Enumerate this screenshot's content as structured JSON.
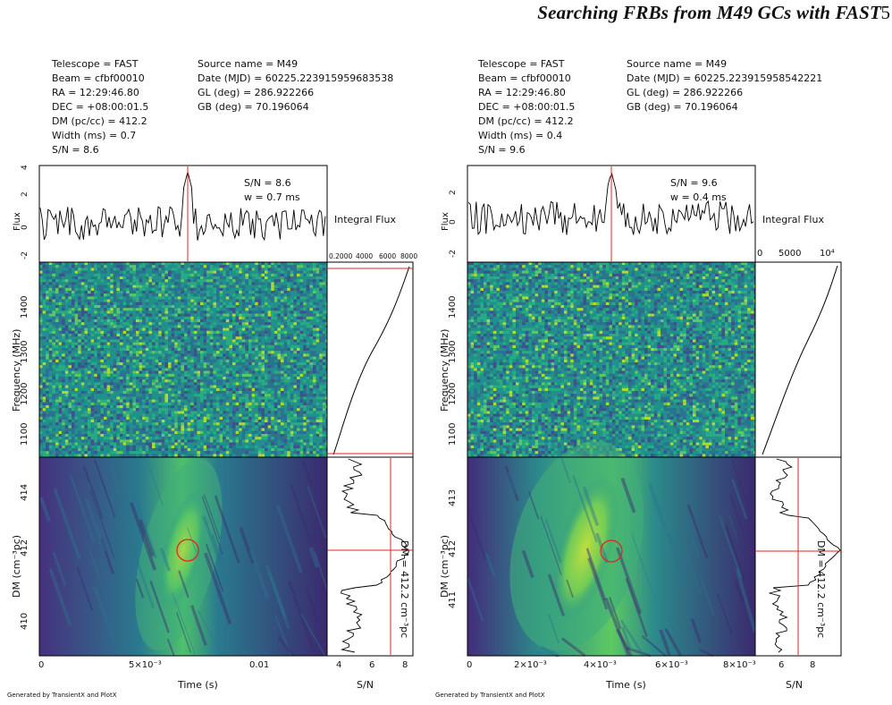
{
  "header": {
    "title": "Searching FRBs from M49 GCs with FAST",
    "page_number": "5"
  },
  "panels": [
    {
      "meta_left": [
        "Telescope = FAST",
        "Beam = cfbf00010",
        "RA = 12:29:46.80",
        "DEC = +08:00:01.5",
        "DM (pc/cc) = 412.2",
        "Width (ms) = 0.7",
        "S/N = 8.6"
      ],
      "meta_right": [
        "Source name = M49",
        "Date (MJD) = 60225.223915959683538",
        "GL (deg) = 286.922266",
        "GB (deg) = 70.196064"
      ],
      "flux_annot": [
        "S/N = 8.6",
        "w = 0.7 ms"
      ],
      "integral_flux_label": "Integral Flux",
      "integral_ticks": [
        "0.2000",
        "4000",
        "6000",
        "8000"
      ],
      "flux_axis_label": "Flux",
      "flux_ticks": [
        "4",
        "2",
        "0",
        "-2"
      ],
      "freq_axis_label": "Frequency (MHz)",
      "freq_ticks": [
        "1400",
        "1300",
        "1200",
        "1100"
      ],
      "dm_axis_label": "DM (cm⁻³pc)",
      "dm_ticks": [
        "414",
        "412",
        "410"
      ],
      "dm_annotation": "DM = 412.2 cm⁻³pc",
      "time_axis_label": "Time (s)",
      "time_ticks": [
        "0",
        "5×10⁻³",
        "0.01"
      ],
      "sn_axis_label": "S/N",
      "sn_ticks": [
        "4",
        "6",
        "8"
      ],
      "footer": "Generated by TransientX and PlotX"
    },
    {
      "meta_left": [
        "Telescope = FAST",
        "Beam = cfbf00010",
        "RA = 12:29:46.80",
        "DEC = +08:00:01.5",
        "DM (pc/cc) = 412.2",
        "Width (ms) = 0.4",
        "S/N = 9.6"
      ],
      "meta_right": [
        "Source name = M49",
        "Date (MJD) = 60225.223915958542221",
        "GL (deg) = 286.922266",
        "GB (deg) = 70.196064"
      ],
      "flux_annot": [
        "S/N = 9.6",
        "w = 0.4 ms"
      ],
      "integral_flux_label": "Integral Flux",
      "integral_ticks": [
        "0",
        "5000",
        "10⁴"
      ],
      "flux_axis_label": "Flux",
      "flux_ticks": [
        "2",
        "0",
        "-2"
      ],
      "freq_axis_label": "Frequency (MHz)",
      "freq_ticks": [
        "1400",
        "1300",
        "1200",
        "1100"
      ],
      "dm_axis_label": "DM (cm⁻³pc)",
      "dm_ticks": [
        "413",
        "412",
        "411"
      ],
      "dm_annotation": "DM = 412.2 cm⁻³pc",
      "time_axis_label": "Time (s)",
      "time_ticks": [
        "0",
        "2×10⁻³",
        "4×10⁻³",
        "6×10⁻³",
        "8×10⁻³"
      ],
      "sn_axis_label": "S/N",
      "sn_ticks": [
        "6",
        "8"
      ],
      "footer": "Generated by TransientX and PlotX"
    }
  ],
  "colors": {
    "viridis_dark": "#440154",
    "viridis_mid": "#21918c",
    "viridis_bright": "#fde725",
    "marker": "#e3261f"
  }
}
